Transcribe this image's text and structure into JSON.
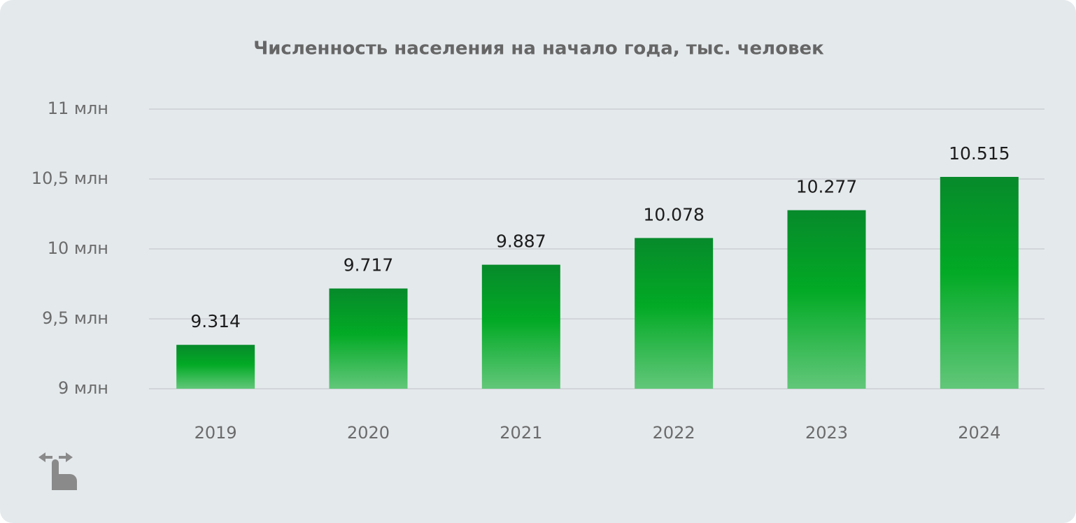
{
  "chart_data": {
    "type": "bar",
    "title": "Численность населения на начало года, тыс. человек",
    "categories": [
      "2019",
      "2020",
      "2021",
      "2022",
      "2023",
      "2024"
    ],
    "values": [
      9.314,
      9.717,
      9.887,
      10.078,
      10.277,
      10.515
    ],
    "color": "#00a826",
    "ylim": [
      9,
      11
    ],
    "yticks": [
      {
        "value": 9,
        "label": "9 млн"
      },
      {
        "value": 9.5,
        "label": "9,5 млн"
      },
      {
        "value": 10,
        "label": "10 млн"
      },
      {
        "value": 10.5,
        "label": "10,5 млн"
      },
      {
        "value": 11,
        "label": "11 млн"
      }
    ],
    "grid": true
  }
}
